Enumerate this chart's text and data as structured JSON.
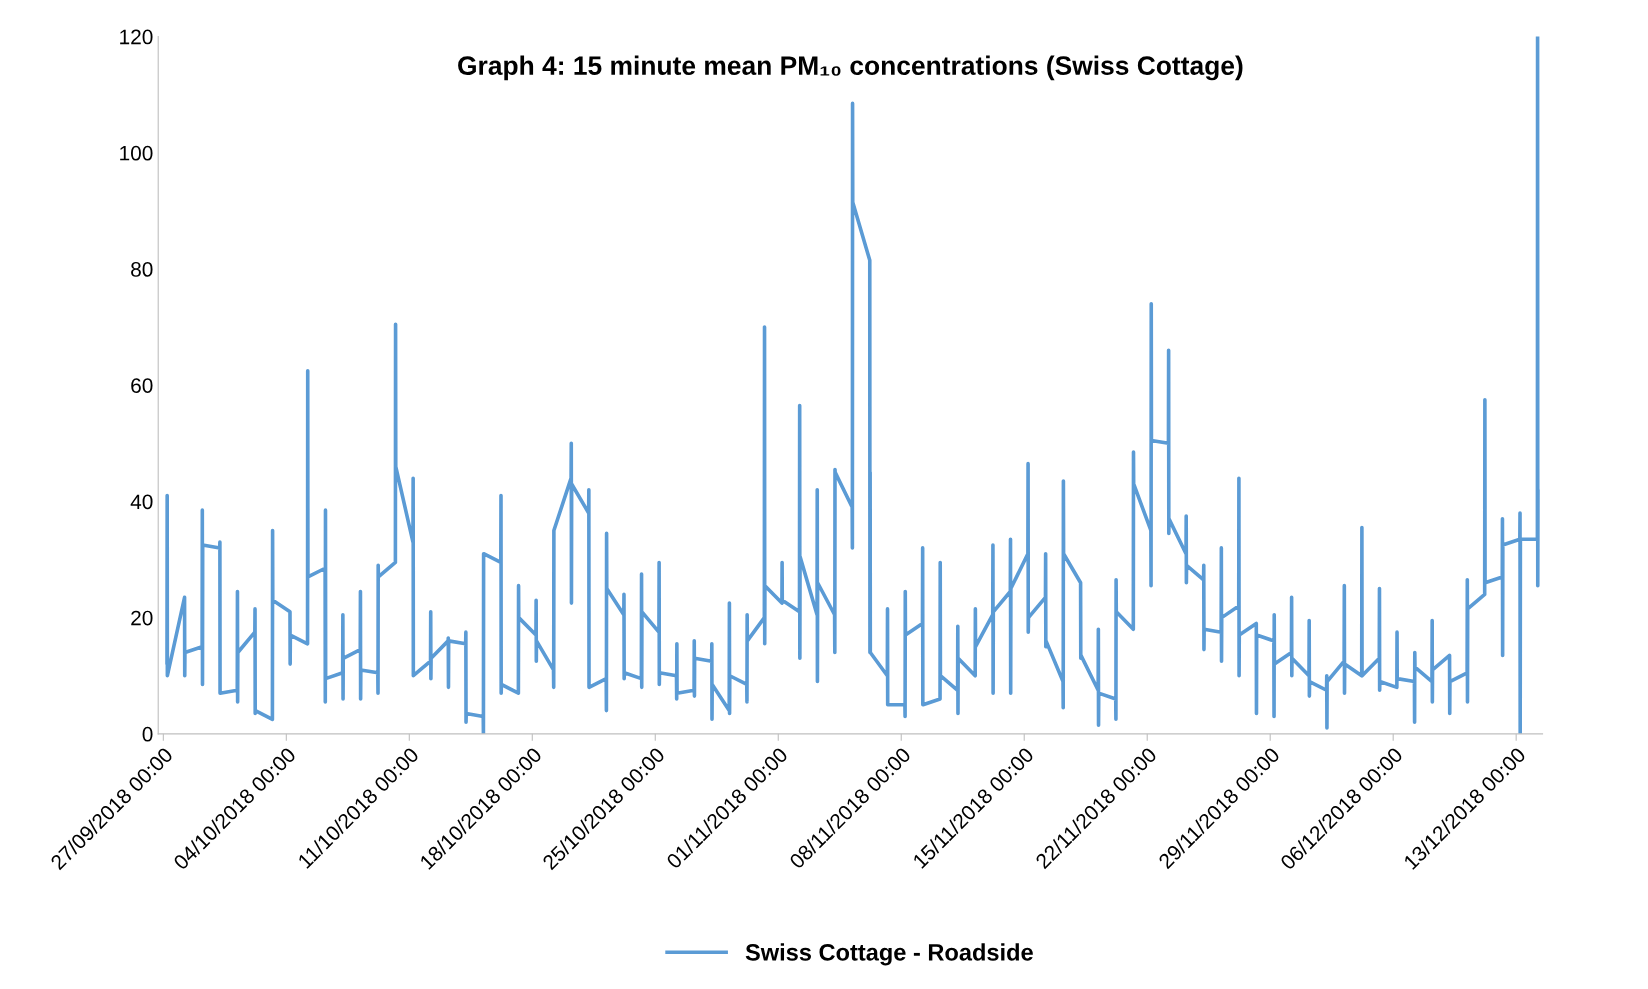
{
  "chart_data": {
    "type": "line",
    "title": "Graph 4: 15 minute mean PM₁₀ concentrations (Swiss Cottage)",
    "xlim": [
      "2018-09-26T17:00",
      "2018-12-14T12:00"
    ],
    "ylim": [
      0,
      120
    ],
    "yticks": [
      0,
      20,
      40,
      60,
      80,
      100,
      120
    ],
    "xticks": [
      {
        "value": "2018-09-27",
        "label": "27/09/2018 00:00"
      },
      {
        "value": "2018-10-04",
        "label": "04/10/2018 00:00"
      },
      {
        "value": "2018-10-11",
        "label": "11/10/2018 00:00"
      },
      {
        "value": "2018-10-18",
        "label": "18/10/2018 00:00"
      },
      {
        "value": "2018-10-25",
        "label": "25/10/2018 00:00"
      },
      {
        "value": "2018-11-01",
        "label": "01/11/2018 00:00"
      },
      {
        "value": "2018-11-08",
        "label": "08/11/2018 00:00"
      },
      {
        "value": "2018-11-15",
        "label": "15/11/2018 00:00"
      },
      {
        "value": "2018-11-22",
        "label": "22/11/2018 00:00"
      },
      {
        "value": "2018-11-29",
        "label": "29/11/2018 00:00"
      },
      {
        "value": "2018-12-06",
        "label": "06/12/2018 00:00"
      },
      {
        "value": "2018-12-13",
        "label": "13/12/2018 00:00"
      }
    ],
    "grid": false,
    "legend": "bottom",
    "marker": "none",
    "line_style": "solid",
    "series": [
      {
        "name": "Swiss Cottage - Roadside",
        "color": "#5b9bd5",
        "x": [
          "2018-09-27T05:00",
          "2018-09-27T05:15",
          "2018-09-27T05:30",
          "2018-09-28T05:00",
          "2018-09-28T05:15",
          "2018-09-28T05:30",
          "2018-09-29T05:00",
          "2018-09-29T05:15",
          "2018-09-29T05:30",
          "2018-09-29T05:45",
          "2018-09-30T05:00",
          "2018-09-30T05:15",
          "2018-09-30T05:30",
          "2018-10-01T05:00",
          "2018-10-01T05:15",
          "2018-10-01T05:30",
          "2018-10-01T05:45",
          "2018-10-02T05:00",
          "2018-10-02T05:15",
          "2018-10-02T05:30",
          "2018-10-02T05:45",
          "2018-10-03T05:00",
          "2018-10-03T05:15",
          "2018-10-03T05:30",
          "2018-10-04T05:00",
          "2018-10-04T05:15",
          "2018-10-04T05:30",
          "2018-10-05T05:00",
          "2018-10-05T05:15",
          "2018-10-05T05:30",
          "2018-10-06T05:00",
          "2018-10-06T05:15",
          "2018-10-06T05:30",
          "2018-10-06T05:45",
          "2018-10-07T05:00",
          "2018-10-07T05:15",
          "2018-10-07T05:30",
          "2018-10-07T05:45",
          "2018-10-08T05:00",
          "2018-10-08T05:15",
          "2018-10-08T05:30",
          "2018-10-08T05:45",
          "2018-10-09T05:00",
          "2018-10-09T05:15",
          "2018-10-09T05:30",
          "2018-10-09T05:45",
          "2018-10-10T05:00",
          "2018-10-10T05:15",
          "2018-10-10T05:30",
          "2018-10-11T05:00",
          "2018-10-11T05:15",
          "2018-10-11T05:30",
          "2018-10-12T05:00",
          "2018-10-12T05:15",
          "2018-10-12T05:30",
          "2018-10-12T05:45",
          "2018-10-13T05:00",
          "2018-10-13T05:15",
          "2018-10-13T05:30",
          "2018-10-13T05:45",
          "2018-10-14T05:00",
          "2018-10-14T05:15",
          "2018-10-14T05:30",
          "2018-10-14T05:45",
          "2018-10-15T05:00",
          "2018-10-15T05:15",
          "2018-10-15T05:30",
          "2018-10-16T05:00",
          "2018-10-16T05:15",
          "2018-10-16T05:30",
          "2018-10-16T05:45",
          "2018-10-17T05:00",
          "2018-10-17T05:15",
          "2018-10-17T05:30",
          "2018-10-18T05:00",
          "2018-10-18T05:15",
          "2018-10-18T05:30",
          "2018-10-18T05:45",
          "2018-10-19T05:00",
          "2018-10-19T05:15",
          "2018-10-19T05:30",
          "2018-10-20T05:00",
          "2018-10-20T05:15",
          "2018-10-20T05:30",
          "2018-10-20T05:45",
          "2018-10-21T05:00",
          "2018-10-21T05:15",
          "2018-10-21T05:30",
          "2018-10-22T05:00",
          "2018-10-22T05:15",
          "2018-10-22T05:30",
          "2018-10-22T05:45",
          "2018-10-23T05:00",
          "2018-10-23T05:15",
          "2018-10-23T05:30",
          "2018-10-23T05:45",
          "2018-10-24T05:00",
          "2018-10-24T05:15",
          "2018-10-24T05:30",
          "2018-10-24T05:45",
          "2018-10-25T05:00",
          "2018-10-25T05:15",
          "2018-10-25T05:30",
          "2018-10-25T05:45",
          "2018-10-26T05:00",
          "2018-10-26T05:15",
          "2018-10-26T05:30",
          "2018-10-26T05:45",
          "2018-10-27T05:00",
          "2018-10-27T05:15",
          "2018-10-27T05:30",
          "2018-10-27T05:45",
          "2018-10-28T05:00",
          "2018-10-28T05:15",
          "2018-10-28T05:30",
          "2018-10-28T05:45",
          "2018-10-29T05:00",
          "2018-10-29T05:15",
          "2018-10-29T05:30",
          "2018-10-29T05:45",
          "2018-10-30T05:00",
          "2018-10-30T05:15",
          "2018-10-30T05:30",
          "2018-10-30T05:45",
          "2018-10-31T05:00",
          "2018-10-31T05:15",
          "2018-10-31T05:30",
          "2018-10-31T05:45",
          "2018-11-01T05:00",
          "2018-11-01T05:15",
          "2018-11-01T05:30",
          "2018-11-02T05:00",
          "2018-11-02T05:15",
          "2018-11-02T05:30",
          "2018-11-02T05:45",
          "2018-11-03T05:00",
          "2018-11-03T05:15",
          "2018-11-03T05:30",
          "2018-11-03T05:45",
          "2018-11-04T05:00",
          "2018-11-04T05:15",
          "2018-11-04T05:30",
          "2018-11-04T05:45",
          "2018-11-05T05:00",
          "2018-11-05T05:15",
          "2018-11-05T05:30",
          "2018-11-05T05:45",
          "2018-11-06T05:00",
          "2018-11-06T05:15",
          "2018-11-06T05:30",
          "2018-11-06T05:45",
          "2018-11-07T05:00",
          "2018-11-07T05:15",
          "2018-11-07T05:30",
          "2018-11-07T05:45",
          "2018-11-08T05:00",
          "2018-11-08T05:15",
          "2018-11-08T05:30",
          "2018-11-08T05:45",
          "2018-11-09T05:00",
          "2018-11-09T05:15",
          "2018-11-09T05:30",
          "2018-11-09T05:45",
          "2018-11-10T05:00",
          "2018-11-10T05:15",
          "2018-11-10T05:30",
          "2018-11-11T05:00",
          "2018-11-11T05:15",
          "2018-11-11T05:30",
          "2018-11-11T05:45",
          "2018-11-12T05:00",
          "2018-11-12T05:15",
          "2018-11-12T05:30",
          "2018-11-13T05:00",
          "2018-11-13T05:15",
          "2018-11-13T05:30",
          "2018-11-13T05:45",
          "2018-11-14T05:00",
          "2018-11-14T05:15",
          "2018-11-14T05:30",
          "2018-11-14T05:45",
          "2018-11-15T05:00",
          "2018-11-15T05:15",
          "2018-11-15T05:30",
          "2018-11-15T05:45",
          "2018-11-16T05:00",
          "2018-11-16T05:15",
          "2018-11-16T05:30",
          "2018-11-16T05:45",
          "2018-11-17T05:00",
          "2018-11-17T05:15",
          "2018-11-17T05:30",
          "2018-11-17T05:45",
          "2018-11-18T05:00",
          "2018-11-18T05:15",
          "2018-11-18T05:30",
          "2018-11-19T05:00",
          "2018-11-19T05:15",
          "2018-11-19T05:30",
          "2018-11-19T05:45",
          "2018-11-20T05:00",
          "2018-11-20T05:15",
          "2018-11-20T05:30",
          "2018-11-20T05:45",
          "2018-11-21T05:00",
          "2018-11-21T05:15",
          "2018-11-21T05:30",
          "2018-11-22T05:00",
          "2018-11-22T05:15",
          "2018-11-22T05:30",
          "2018-11-22T05:45",
          "2018-11-23T05:00",
          "2018-11-23T05:15",
          "2018-11-23T05:30",
          "2018-11-23T05:45",
          "2018-11-24T05:00",
          "2018-11-24T05:15",
          "2018-11-24T05:30",
          "2018-11-24T05:45",
          "2018-11-25T05:00",
          "2018-11-25T05:15",
          "2018-11-25T05:30",
          "2018-11-25T05:45",
          "2018-11-26T05:00",
          "2018-11-26T05:15",
          "2018-11-26T05:30",
          "2018-11-26T05:45",
          "2018-11-27T05:00",
          "2018-11-27T05:15",
          "2018-11-27T05:30",
          "2018-11-27T05:45",
          "2018-11-28T05:00",
          "2018-11-28T05:15",
          "2018-11-28T05:30",
          "2018-11-29T05:00",
          "2018-11-29T05:15",
          "2018-11-29T05:30",
          "2018-11-29T05:45",
          "2018-11-30T05:00",
          "2018-11-30T05:15",
          "2018-11-30T05:30",
          "2018-11-30T05:45",
          "2018-12-01T05:00",
          "2018-12-01T05:15",
          "2018-12-01T05:30",
          "2018-12-01T05:45",
          "2018-12-02T05:00",
          "2018-12-02T05:15",
          "2018-12-02T05:30",
          "2018-12-02T05:45",
          "2018-12-03T05:00",
          "2018-12-03T05:15",
          "2018-12-03T05:30",
          "2018-12-03T05:45",
          "2018-12-04T05:00",
          "2018-12-04T05:15",
          "2018-12-04T05:30",
          "2018-12-05T05:00",
          "2018-12-05T05:15",
          "2018-12-05T05:30",
          "2018-12-05T05:45",
          "2018-12-06T05:00",
          "2018-12-06T05:15",
          "2018-12-06T05:30",
          "2018-12-07T05:00",
          "2018-12-07T05:15",
          "2018-12-07T05:30",
          "2018-12-07T05:45",
          "2018-12-08T05:00",
          "2018-12-08T05:15",
          "2018-12-08T05:30",
          "2018-12-08T05:45",
          "2018-12-09T05:00",
          "2018-12-09T05:15",
          "2018-12-09T05:30",
          "2018-12-10T05:00",
          "2018-12-10T05:15",
          "2018-12-10T05:30",
          "2018-12-10T05:45",
          "2018-12-11T05:00",
          "2018-12-11T05:15",
          "2018-12-11T05:30",
          "2018-12-12T05:00",
          "2018-12-12T05:15",
          "2018-12-12T05:30",
          "2018-12-12T05:45",
          "2018-12-13T05:00",
          "2018-12-13T05:15",
          "2018-12-13T05:30",
          "2018-12-13T05:45",
          "2018-12-14T05:00",
          "2018-12-14T05:15",
          "2018-12-14T05:30",
          "2018-12-14T05:45"
        ],
        "values": [
          12,
          41,
          10,
          23.5,
          10,
          14,
          15,
          38.5,
          8.5,
          32.5,
          32,
          33,
          7,
          7.5,
          24.5,
          5.5,
          14,
          17.5,
          21.5,
          3.5,
          4,
          2.5,
          35,
          23,
          21,
          12,
          17,
          15.5,
          62.5,
          27,
          28.5,
          5.5,
          38.5,
          9.5,
          10.5,
          20.5,
          6,
          13,
          14.5,
          24.5,
          6,
          11,
          10.5,
          7,
          29,
          27,
          29.5,
          70.5,
          46,
          33,
          44,
          10,
          12.5,
          21,
          9.5,
          13,
          16,
          16.5,
          8,
          16,
          15.5,
          17.5,
          2,
          3.5,
          3,
          0,
          31,
          29.5,
          41,
          7,
          8.5,
          7,
          25.5,
          20,
          17,
          23,
          12.5,
          16,
          11,
          8,
          35,
          44,
          50,
          22.5,
          43,
          38,
          42,
          8,
          9.5,
          4,
          34.5,
          25,
          20.5,
          24,
          9.5,
          10.5,
          9.5,
          27.5,
          8,
          21,
          17.5,
          29.5,
          8.5,
          10.5,
          10,
          6,
          15.5,
          7,
          7.5,
          16,
          6.5,
          13,
          12.5,
          15.5,
          2.5,
          8.5,
          4,
          22.5,
          3.5,
          10,
          8.5,
          5.5,
          20.5,
          16,
          20,
          70,
          15.5,
          25.5,
          22.5,
          29.5,
          23,
          21,
          56.5,
          13,
          30.5,
          20.5,
          42,
          9,
          26,
          20.5,
          14,
          45.5,
          45,
          39,
          32,
          108.5,
          91.5,
          81.5,
          14,
          45,
          14,
          10,
          21.5,
          5,
          5,
          5,
          3,
          24.5,
          17,
          19,
          32,
          5,
          5,
          6,
          29.5,
          10,
          7.5,
          18.5,
          3.5,
          13,
          10,
          21.5,
          15,
          20.5,
          32.5,
          7,
          21,
          24.5,
          33.5,
          7,
          25,
          31,
          46.5,
          17.5,
          20,
          23.5,
          31,
          15,
          16,
          9,
          4.5,
          43.5,
          31,
          26,
          13,
          13.5,
          7.5,
          18,
          1.5,
          7,
          6,
          2.5,
          26.5,
          21,
          18,
          48.5,
          43,
          35,
          25.5,
          74,
          50.5,
          50,
          66,
          34.5,
          37,
          31,
          37.5,
          26,
          29,
          26.5,
          29,
          14.5,
          18,
          17.5,
          32,
          12.5,
          20,
          22,
          44,
          10,
          17,
          19,
          3.5,
          17,
          16,
          3,
          20.5,
          12,
          14,
          23.5,
          10,
          13,
          10,
          19.5,
          6.5,
          9,
          7.5,
          10,
          1,
          9,
          12.5,
          25.5,
          7,
          12,
          10,
          35.5,
          10,
          13,
          25,
          7.5,
          9,
          8,
          17.5,
          9.5,
          9,
          2,
          14,
          11.5,
          9,
          19.5,
          5.5,
          11,
          13.5,
          3.5,
          9,
          10.5,
          26.5,
          5.5,
          21.5,
          24,
          57.5,
          26,
          27,
          37,
          13.5,
          32.5,
          33.5,
          38,
          0,
          33.5,
          33.5,
          120,
          25.5,
          42
        ]
      }
    ]
  }
}
